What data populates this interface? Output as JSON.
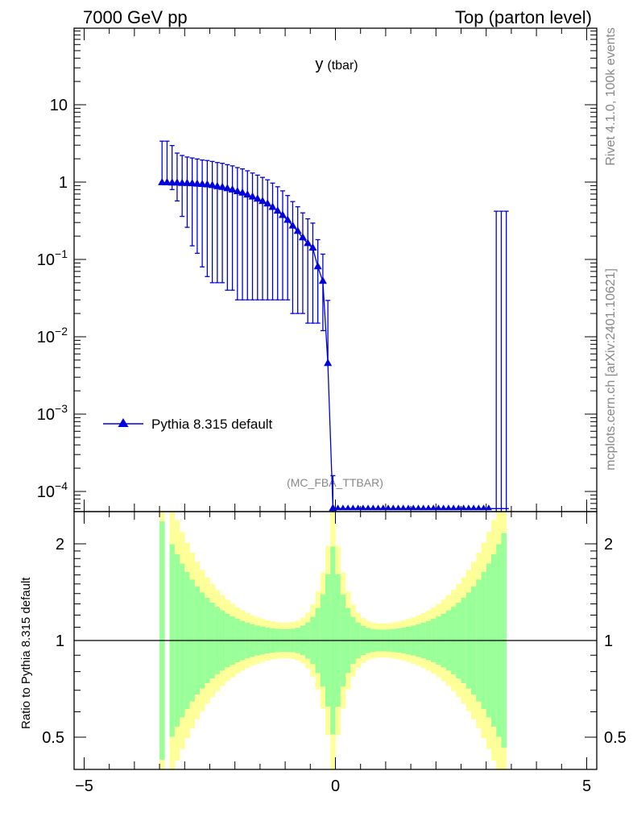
{
  "header": {
    "left": "7000 GeV pp",
    "right": "Top (parton level)"
  },
  "side_labels": {
    "top": "Rivet 4.1.0,  100k events",
    "bottom": "mcplots.cern.ch [arXiv:2401.10621]"
  },
  "chart_data": [
    {
      "type": "scatter",
      "panel": "main",
      "title": "y",
      "title_suffix": "(tbar)",
      "watermark": "(MC_FBA_TTBAR)",
      "yscale": "log",
      "xlim": [
        -5.2,
        5.2
      ],
      "ylim": [
        6e-05,
        90
      ],
      "ytick_labels": [
        "10",
        "1",
        "10^-1",
        "10^-2",
        "10^-3",
        "10^-4"
      ],
      "legend_position": "center-left",
      "series": [
        {
          "name": "Pythia 8.315 default",
          "color": "#0000dd",
          "marker": "triangle-up",
          "x": [
            -3.45,
            -3.35,
            -3.25,
            -3.15,
            -3.05,
            -2.95,
            -2.85,
            -2.75,
            -2.65,
            -2.55,
            -2.45,
            -2.35,
            -2.25,
            -2.15,
            -2.05,
            -1.95,
            -1.85,
            -1.75,
            -1.65,
            -1.55,
            -1.45,
            -1.35,
            -1.25,
            -1.15,
            -1.05,
            -0.95,
            -0.85,
            -0.75,
            -0.65,
            -0.55,
            -0.45,
            -0.35,
            -0.25,
            -0.15,
            -0.05
          ],
          "y": [
            0.98,
            0.98,
            0.97,
            0.97,
            0.96,
            0.96,
            0.95,
            0.94,
            0.93,
            0.92,
            0.9,
            0.87,
            0.85,
            0.82,
            0.79,
            0.75,
            0.72,
            0.68,
            0.64,
            0.6,
            0.56,
            0.52,
            0.47,
            0.42,
            0.37,
            0.32,
            0.27,
            0.23,
            0.19,
            0.16,
            0.14,
            0.08,
            0.052,
            0.0045,
            6e-05
          ],
          "err_hi": [
            2.4,
            2.4,
            2.0,
            1.4,
            1.25,
            1.15,
            1.1,
            1.05,
            1.0,
            0.98,
            0.95,
            0.92,
            0.9,
            0.86,
            0.83,
            0.79,
            0.76,
            0.72,
            0.67,
            0.63,
            0.59,
            0.55,
            0.5,
            0.45,
            0.4,
            0.35,
            0.29,
            0.25,
            0.21,
            0.175,
            0.155,
            0.1,
            0.065,
            0.025,
            0.0001
          ],
          "err_lo": [
            6e-05,
            6e-05,
            0.17,
            0.4,
            0.6,
            0.7,
            0.8,
            0.82,
            0.85,
            0.86,
            0.85,
            0.82,
            0.8,
            0.78,
            0.75,
            0.72,
            0.69,
            0.65,
            0.61,
            0.57,
            0.53,
            0.49,
            0.44,
            0.39,
            0.34,
            0.29,
            0.25,
            0.21,
            0.17,
            0.145,
            0.125,
            0.065,
            0.04,
            6e-05,
            6e-05
          ],
          "spikes_x": [
            3.2,
            3.3,
            3.4
          ],
          "spikes_y": 0.42
        }
      ]
    },
    {
      "type": "area",
      "panel": "ratio",
      "ylabel": "Ratio to Pythia 8.315 default",
      "xlim": [
        -5.2,
        5.2
      ],
      "ylim": [
        0.4,
        2.5
      ],
      "yscale": "log",
      "xtick_labels": [
        "−5",
        "0",
        "5"
      ],
      "ytick_labels": [
        "2",
        "1",
        "0.5"
      ],
      "reference_line": 1,
      "band_colors": {
        "inner": "#99ff99",
        "outer": "#ffff99"
      }
    }
  ]
}
